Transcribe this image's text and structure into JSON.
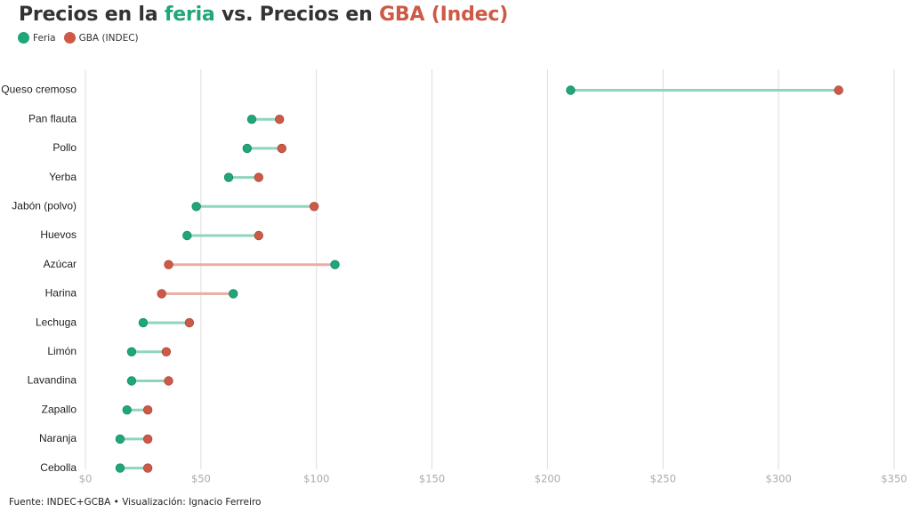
{
  "title": {
    "part1": "Precios en la ",
    "feria_word": "feria",
    "part2": " vs. Precios en ",
    "gba_word": "GBA (Indec)"
  },
  "legend": {
    "feria_label": "Feria",
    "gba_label": "GBA (INDEC)"
  },
  "colors": {
    "feria": "#1fa67a",
    "gba": "#cd5a46",
    "feria_line": "#8fd5bd",
    "gba_line": "#eaada2",
    "grid": "#dddddd",
    "title_text": "#333333"
  },
  "source_text": "Fuente: INDEC+GCBA • Visualización: Ignacio Ferreiro",
  "chart_data": {
    "type": "dumbbell",
    "title": "Precios en la feria vs. Precios en GBA (Indec)",
    "xlim": [
      0,
      350
    ],
    "x_ticks": [
      0,
      50,
      100,
      150,
      200,
      250,
      300,
      350
    ],
    "x_tick_labels": [
      "$0",
      "$50",
      "$100",
      "$150",
      "$200",
      "$250",
      "$300",
      "$350"
    ],
    "grid": true,
    "legend_position": "top-left",
    "categories": [
      "Queso cremoso",
      "Pan flauta",
      "Pollo",
      "Yerba",
      "Jabón (polvo)",
      "Huevos",
      "Azúcar",
      "Harina",
      "Lechuga",
      "Limón",
      "Lavandina",
      "Zapallo",
      "Naranja",
      "Cebolla"
    ],
    "series": [
      {
        "name": "Feria",
        "values": [
          210,
          72,
          70,
          62,
          48,
          44,
          108,
          64,
          25,
          20,
          20,
          18,
          15,
          15
        ]
      },
      {
        "name": "GBA (INDEC)",
        "values": [
          326,
          84,
          85,
          75,
          99,
          75,
          36,
          33,
          45,
          35,
          36,
          27,
          27,
          27
        ]
      }
    ]
  }
}
